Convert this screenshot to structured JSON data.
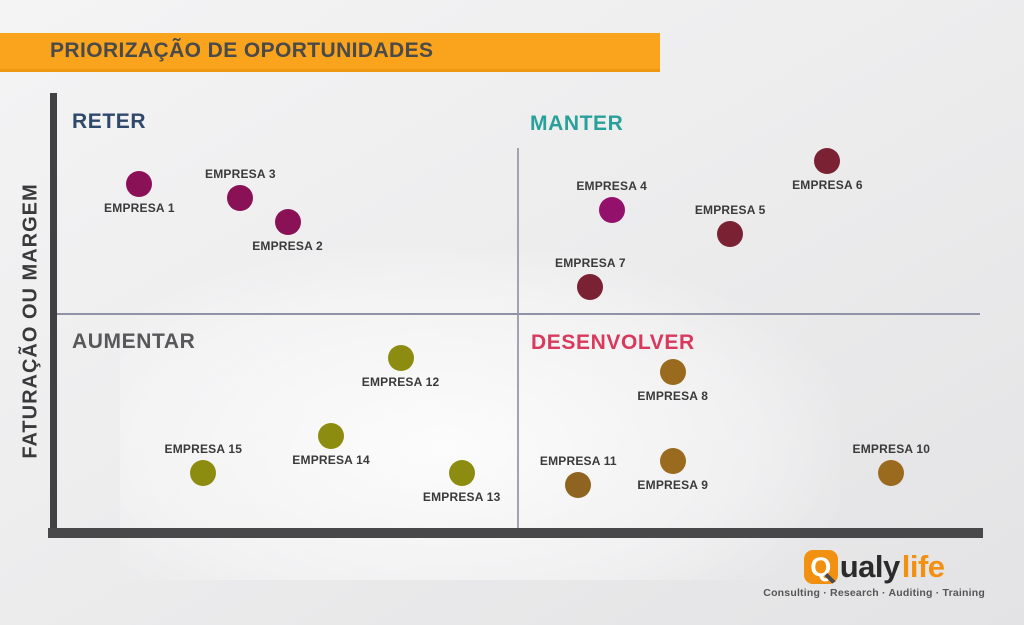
{
  "banner": {
    "title": "PRIORIZAÇÃO DE OPORTUNIDADES",
    "color": "#f9a41c"
  },
  "chart_data": {
    "type": "scatter",
    "title": "PRIORIZAÇÃO DE OPORTUNIDADES",
    "xlabel": "",
    "ylabel": "FATURAÇÃO OU MARGEM",
    "axis_numeric_ticks": false,
    "grid": false,
    "legend": false,
    "coords_note": "x,y are percent of plot area; y measured from top (high y = low faturação)",
    "quadrants": [
      {
        "position": "top-left",
        "label": "RETER",
        "color": "#30496b"
      },
      {
        "position": "top-right",
        "label": "MANTER",
        "color": "#2aa09a"
      },
      {
        "position": "bottom-left",
        "label": "AUMENTAR",
        "color": "#58585a"
      },
      {
        "position": "bottom-right",
        "label": "DESENVOLVER",
        "color": "#d8395c"
      }
    ],
    "points": [
      {
        "name": "EMPRESA 1",
        "x": 8.9,
        "y": 20.6,
        "color": "#8b1157",
        "quadrant": "RETER",
        "label_pos": "below"
      },
      {
        "name": "EMPRESA 2",
        "x": 24.9,
        "y": 29.3,
        "color": "#8b1157",
        "quadrant": "RETER",
        "label_pos": "below"
      },
      {
        "name": "EMPRESA 3",
        "x": 19.8,
        "y": 23.8,
        "color": "#8b1157",
        "quadrant": "RETER",
        "label_pos": "above"
      },
      {
        "name": "EMPRESA 4",
        "x": 59.9,
        "y": 26.6,
        "color": "#93116b",
        "quadrant": "MANTER",
        "label_pos": "above"
      },
      {
        "name": "EMPRESA 5",
        "x": 72.7,
        "y": 32.1,
        "color": "#7b2134",
        "quadrant": "MANTER",
        "label_pos": "above"
      },
      {
        "name": "EMPRESA 6",
        "x": 83.2,
        "y": 15.2,
        "color": "#7b2134",
        "quadrant": "MANTER",
        "label_pos": "below"
      },
      {
        "name": "EMPRESA 7",
        "x": 57.6,
        "y": 44.3,
        "color": "#7b2134",
        "quadrant": "MANTER",
        "label_pos": "above"
      },
      {
        "name": "EMPRESA 8",
        "x": 66.5,
        "y": 64.0,
        "color": "#9a6b1e",
        "quadrant": "DESENVOLVER",
        "label_pos": "below"
      },
      {
        "name": "EMPRESA 9",
        "x": 66.5,
        "y": 84.5,
        "color": "#9a6b1e",
        "quadrant": "DESENVOLVER",
        "label_pos": "below"
      },
      {
        "name": "EMPRESA 10",
        "x": 90.1,
        "y": 87.3,
        "color": "#9a6b1e",
        "quadrant": "DESENVOLVER",
        "label_pos": "above"
      },
      {
        "name": "EMPRESA 11",
        "x": 56.3,
        "y": 90.1,
        "color": "#8f6420",
        "quadrant": "DESENVOLVER",
        "label_pos": "above"
      },
      {
        "name": "EMPRESA 12",
        "x": 37.1,
        "y": 60.7,
        "color": "#8c8c10",
        "quadrant": "AUMENTAR",
        "label_pos": "below"
      },
      {
        "name": "EMPRESA 13",
        "x": 43.7,
        "y": 87.3,
        "color": "#8c8c10",
        "quadrant": "AUMENTAR",
        "label_pos": "below"
      },
      {
        "name": "EMPRESA 14",
        "x": 29.6,
        "y": 78.8,
        "color": "#8c8c10",
        "quadrant": "AUMENTAR",
        "label_pos": "below"
      },
      {
        "name": "EMPRESA 15",
        "x": 15.8,
        "y": 87.3,
        "color": "#8c8c10",
        "quadrant": "AUMENTAR",
        "label_pos": "above"
      }
    ]
  },
  "axis": {
    "ylabel": "FATURAÇÃO OU MARGEM",
    "axis_color": "#414144",
    "divider_color": "#9a9aac"
  },
  "logo": {
    "q": "Q",
    "brand_black": "ualy",
    "brand_orange": "life",
    "orange": "#f29111",
    "tagline": "Consulting · Research · Auditing · Training"
  }
}
